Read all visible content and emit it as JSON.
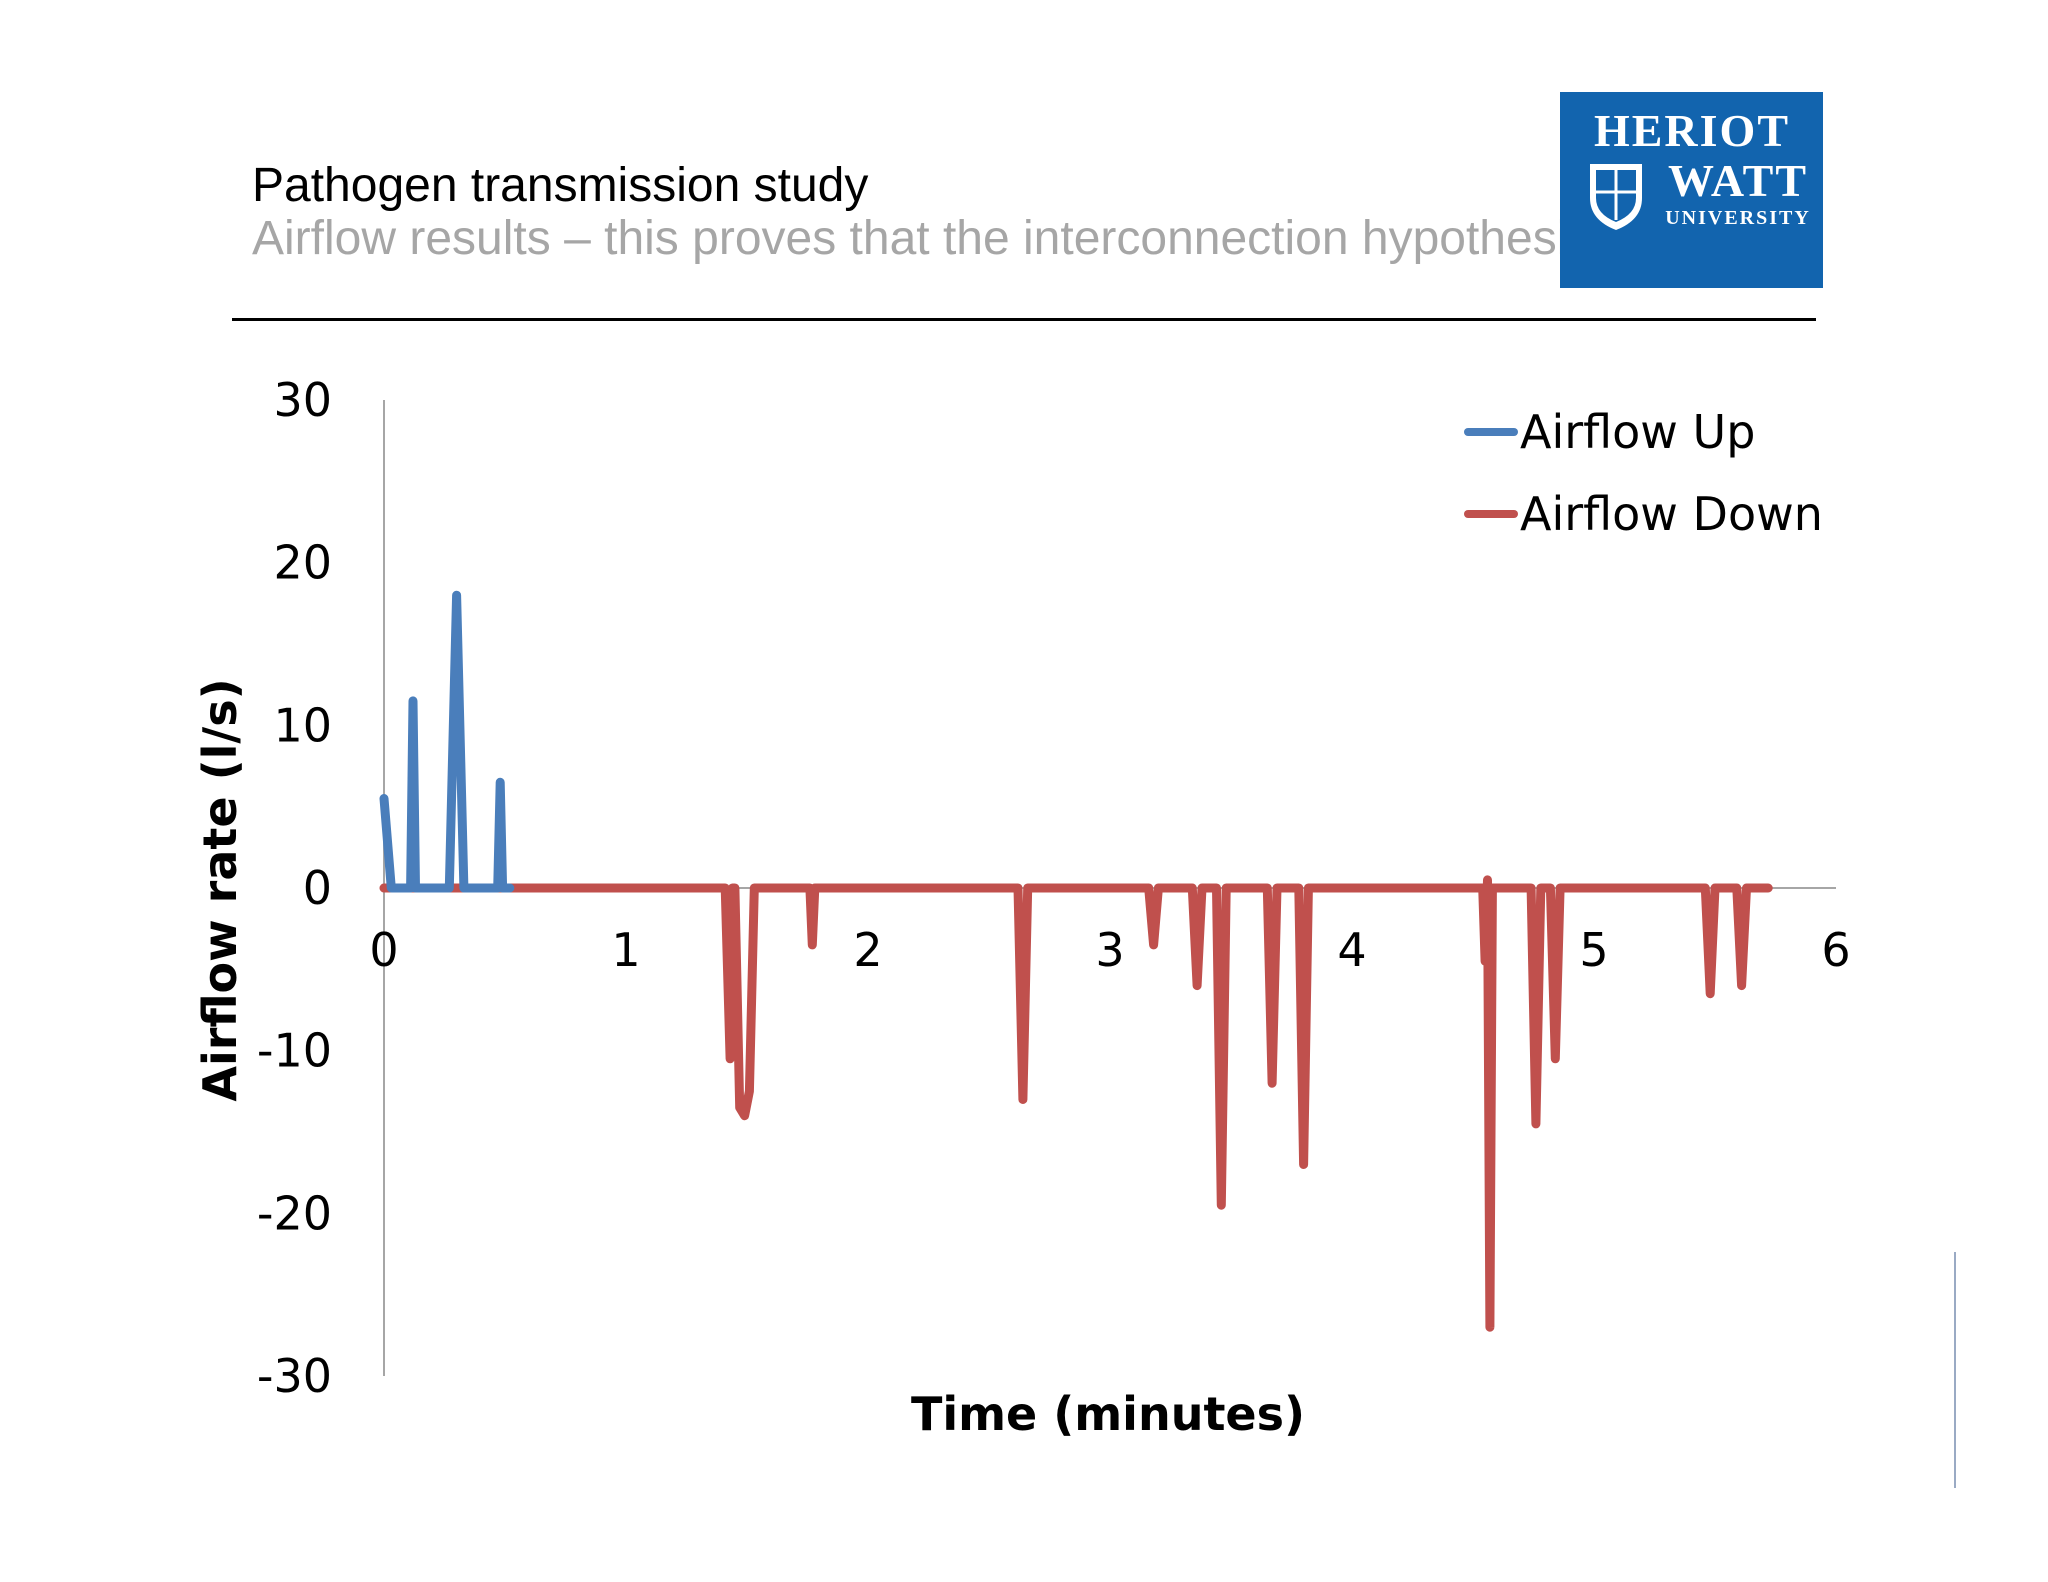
{
  "slide": {
    "title": "Pathogen transmission study",
    "subtitle": "Airflow results – this proves that the interconnection hypothesis is valid"
  },
  "logo": {
    "line1": "HERIOT",
    "line2": "WATT",
    "line3": "UNIVERSITY",
    "background": "#1264ae"
  },
  "chart_data": {
    "type": "line",
    "xlabel": "Time (minutes)",
    "ylabel": "Airflow rate (l/s)",
    "xlim": [
      0,
      6
    ],
    "ylim": [
      -30,
      30
    ],
    "x_ticks": [
      "0",
      "1",
      "2",
      "3",
      "4",
      "5",
      "6"
    ],
    "y_ticks": [
      "30",
      "20",
      "10",
      "0",
      "-10",
      "-20",
      "-30"
    ],
    "legend_position": "top-right",
    "grid": false,
    "series": [
      {
        "name": "Airflow Up",
        "color": "#4a7ebb",
        "x": [
          0,
          0.03,
          0.11,
          0.12,
          0.13,
          0.27,
          0.3,
          0.33,
          0.47,
          0.48,
          0.49,
          0.52
        ],
        "y": [
          5.5,
          0,
          0,
          11.5,
          0,
          0,
          18,
          0,
          0,
          6.5,
          0,
          0
        ]
      },
      {
        "name": "Airflow Down",
        "color": "#c0504d",
        "x": [
          0,
          1.41,
          1.43,
          1.44,
          1.45,
          1.47,
          1.49,
          1.51,
          1.53,
          1.54,
          1.76,
          1.77,
          1.78,
          2.62,
          2.64,
          2.66,
          3.16,
          3.18,
          3.2,
          3.34,
          3.36,
          3.38,
          3.44,
          3.46,
          3.48,
          3.65,
          3.67,
          3.69,
          3.78,
          3.8,
          3.82,
          4.54,
          4.55,
          4.56,
          4.57,
          4.58,
          4.59,
          4.6,
          4.74,
          4.76,
          4.78,
          4.82,
          4.84,
          4.86,
          5.46,
          5.48,
          5.5,
          5.59,
          5.61,
          5.63,
          5.72
        ],
        "y": [
          0,
          0,
          -10.5,
          0,
          0,
          -13.5,
          -14,
          -12.5,
          0,
          0,
          0,
          -3.5,
          0,
          0,
          -13,
          0,
          0,
          -3.5,
          0,
          0,
          -6,
          0,
          0,
          -19.5,
          0,
          0,
          -12,
          0,
          0,
          -17,
          0,
          0,
          -4.5,
          0.5,
          -27,
          0,
          0,
          0,
          0,
          -14.5,
          0,
          0,
          -10.5,
          0,
          0,
          -6.5,
          0,
          0,
          -6,
          0,
          0
        ]
      }
    ]
  }
}
